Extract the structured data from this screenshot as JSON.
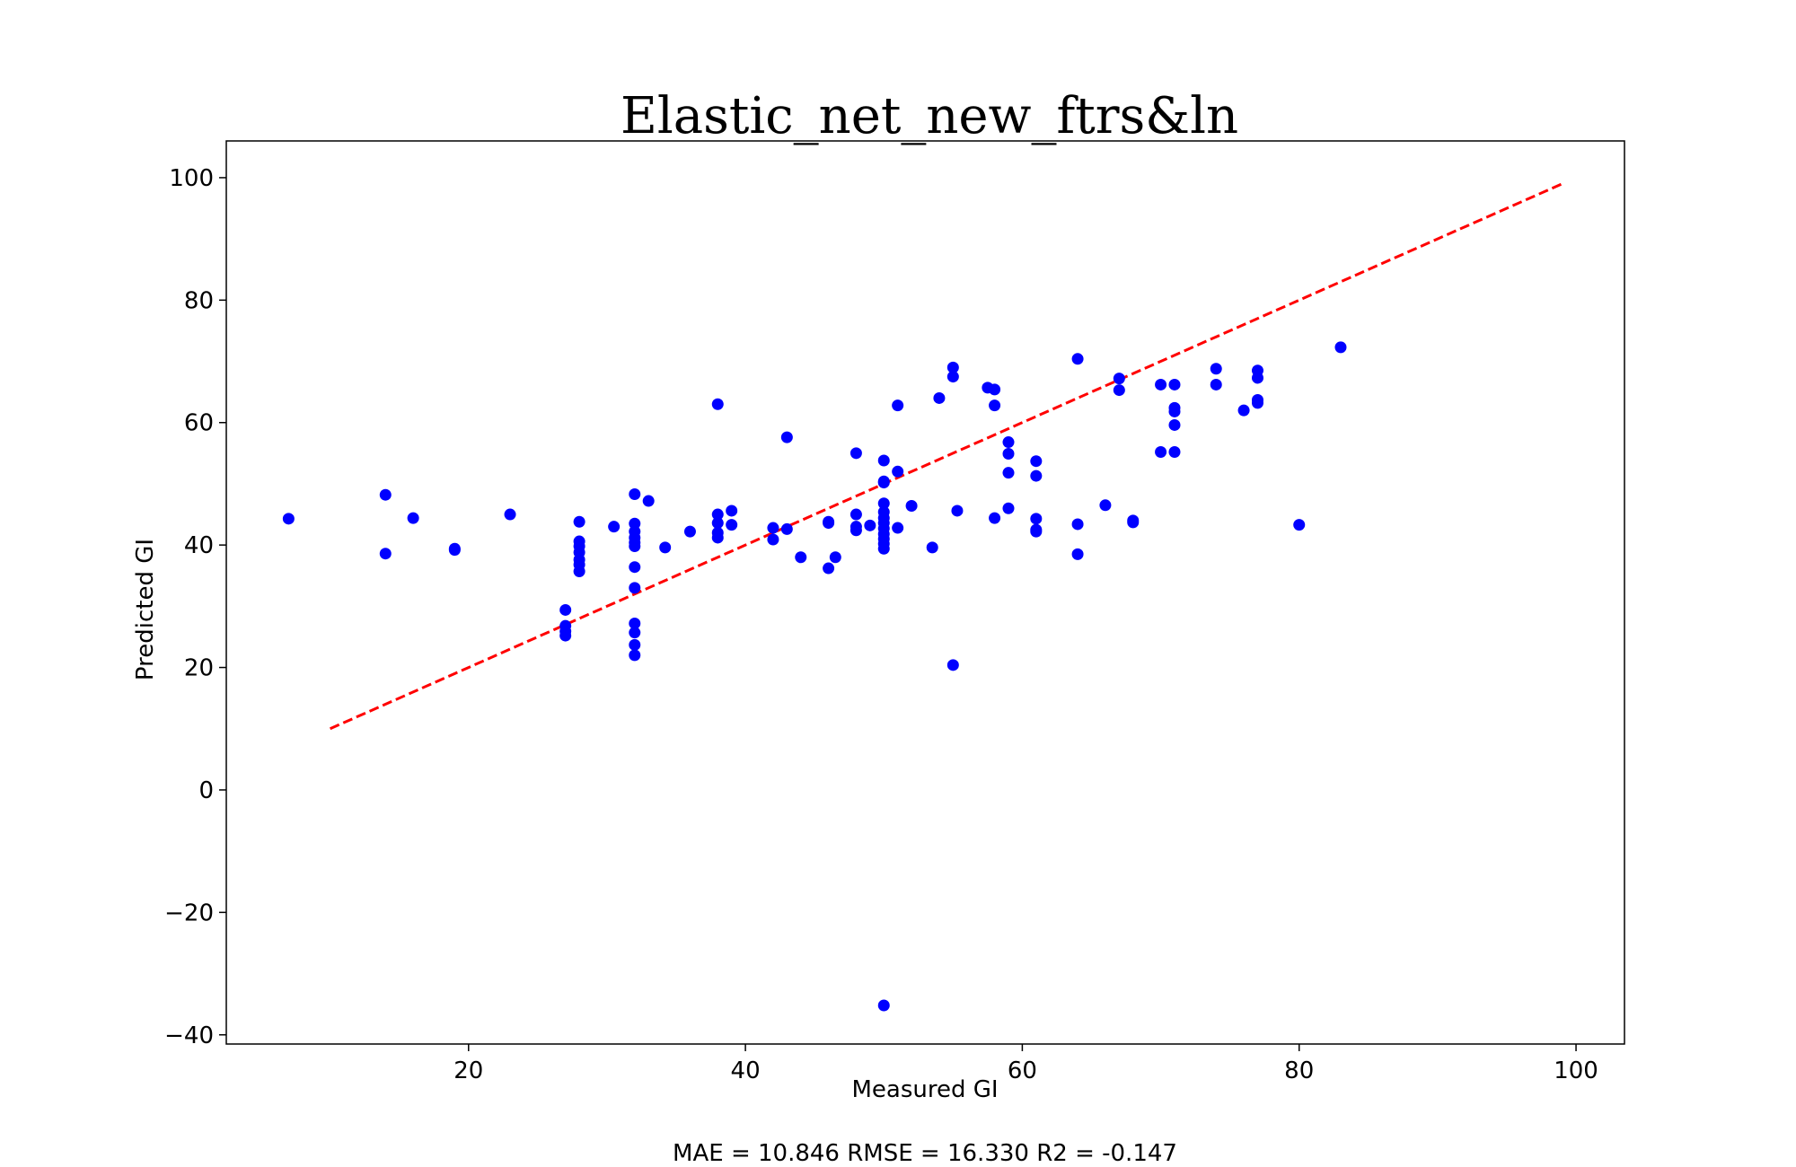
{
  "chart_data": {
    "type": "scatter",
    "title": "Elastic_net_new_ftrs&ln",
    "xlabel": "Measured GI",
    "ylabel": "Predicted GI",
    "footer": "MAE = 10.846 RMSE = 16.330 R2 = -0.147",
    "xlim": [
      2.5,
      103.5
    ],
    "ylim": [
      -41.5,
      106
    ],
    "xticks": [
      20,
      40,
      60,
      80,
      100
    ],
    "yticks": [
      -40,
      -20,
      0,
      20,
      40,
      60,
      80,
      100
    ],
    "grid": false,
    "legend": "none",
    "point_color": "#0000ff",
    "line_color": "#ff0000",
    "reference_line": {
      "x": [
        10,
        99
      ],
      "y": [
        10,
        99
      ],
      "style": "dashed"
    },
    "points": [
      [
        7,
        44.3
      ],
      [
        14,
        48.2
      ],
      [
        14,
        38.6
      ],
      [
        16,
        44.4
      ],
      [
        19,
        39.4
      ],
      [
        19,
        39.2
      ],
      [
        23,
        45
      ],
      [
        27,
        29.4
      ],
      [
        27,
        26.8
      ],
      [
        27,
        25.9
      ],
      [
        27,
        25.2
      ],
      [
        28,
        43.8
      ],
      [
        28,
        40.6
      ],
      [
        28,
        39.8
      ],
      [
        28,
        38.8
      ],
      [
        28,
        37.6
      ],
      [
        28,
        36.8
      ],
      [
        28,
        35.7
      ],
      [
        30.5,
        43
      ],
      [
        32,
        48.3
      ],
      [
        32,
        43.5
      ],
      [
        32,
        42.2
      ],
      [
        32,
        41.2
      ],
      [
        32,
        40.4
      ],
      [
        32,
        39.8
      ],
      [
        32,
        36.4
      ],
      [
        32,
        33
      ],
      [
        32,
        27.2
      ],
      [
        32,
        25.7
      ],
      [
        32,
        23.7
      ],
      [
        32,
        22
      ],
      [
        33,
        47.2
      ],
      [
        34.2,
        39.6
      ],
      [
        36,
        42.2
      ],
      [
        38,
        63
      ],
      [
        38,
        45
      ],
      [
        38,
        43.6
      ],
      [
        38,
        42
      ],
      [
        38,
        41.2
      ],
      [
        39,
        45.6
      ],
      [
        39,
        43.3
      ],
      [
        42,
        42.8
      ],
      [
        42,
        40.9
      ],
      [
        43,
        57.6
      ],
      [
        43,
        42.6
      ],
      [
        44,
        38
      ],
      [
        46,
        43.8
      ],
      [
        46,
        43.6
      ],
      [
        46,
        36.2
      ],
      [
        46.5,
        38
      ],
      [
        48,
        55
      ],
      [
        48,
        45
      ],
      [
        48,
        43
      ],
      [
        48,
        42.4
      ],
      [
        49,
        43.2
      ],
      [
        50,
        53.8
      ],
      [
        50,
        50.4
      ],
      [
        50,
        50.2
      ],
      [
        50,
        46.8
      ],
      [
        50,
        45.4
      ],
      [
        50,
        44.4
      ],
      [
        50,
        43.6
      ],
      [
        50,
        42.7
      ],
      [
        50,
        41.8
      ],
      [
        50,
        41
      ],
      [
        50,
        40.2
      ],
      [
        50,
        39.4
      ],
      [
        50,
        -35.2
      ],
      [
        51,
        62.8
      ],
      [
        51,
        52
      ],
      [
        51,
        42.8
      ],
      [
        52,
        46.4
      ],
      [
        53.5,
        39.6
      ],
      [
        54,
        64
      ],
      [
        55,
        69
      ],
      [
        55,
        67.5
      ],
      [
        55,
        20.4
      ],
      [
        55.3,
        45.6
      ],
      [
        57.5,
        65.7
      ],
      [
        58,
        65.4
      ],
      [
        58,
        62.8
      ],
      [
        58,
        44.4
      ],
      [
        59,
        56.8
      ],
      [
        59,
        54.9
      ],
      [
        59,
        51.8
      ],
      [
        59,
        46
      ],
      [
        61,
        53.7
      ],
      [
        61,
        51.3
      ],
      [
        61,
        44.3
      ],
      [
        61,
        42.5
      ],
      [
        61,
        42.2
      ],
      [
        64,
        70.4
      ],
      [
        64,
        43.4
      ],
      [
        64,
        38.5
      ],
      [
        66,
        46.5
      ],
      [
        67,
        67.2
      ],
      [
        67,
        65.3
      ],
      [
        68,
        44
      ],
      [
        68,
        43.7
      ],
      [
        70,
        66.2
      ],
      [
        70,
        55.2
      ],
      [
        71,
        66.2
      ],
      [
        71,
        62.4
      ],
      [
        71,
        61.8
      ],
      [
        71,
        59.6
      ],
      [
        71,
        55.2
      ],
      [
        74,
        68.8
      ],
      [
        74,
        66.2
      ],
      [
        76,
        62
      ],
      [
        77,
        68.5
      ],
      [
        77,
        67.3
      ],
      [
        77,
        63.7
      ],
      [
        77,
        63.2
      ],
      [
        80,
        43.3
      ],
      [
        83,
        72.3
      ]
    ]
  }
}
